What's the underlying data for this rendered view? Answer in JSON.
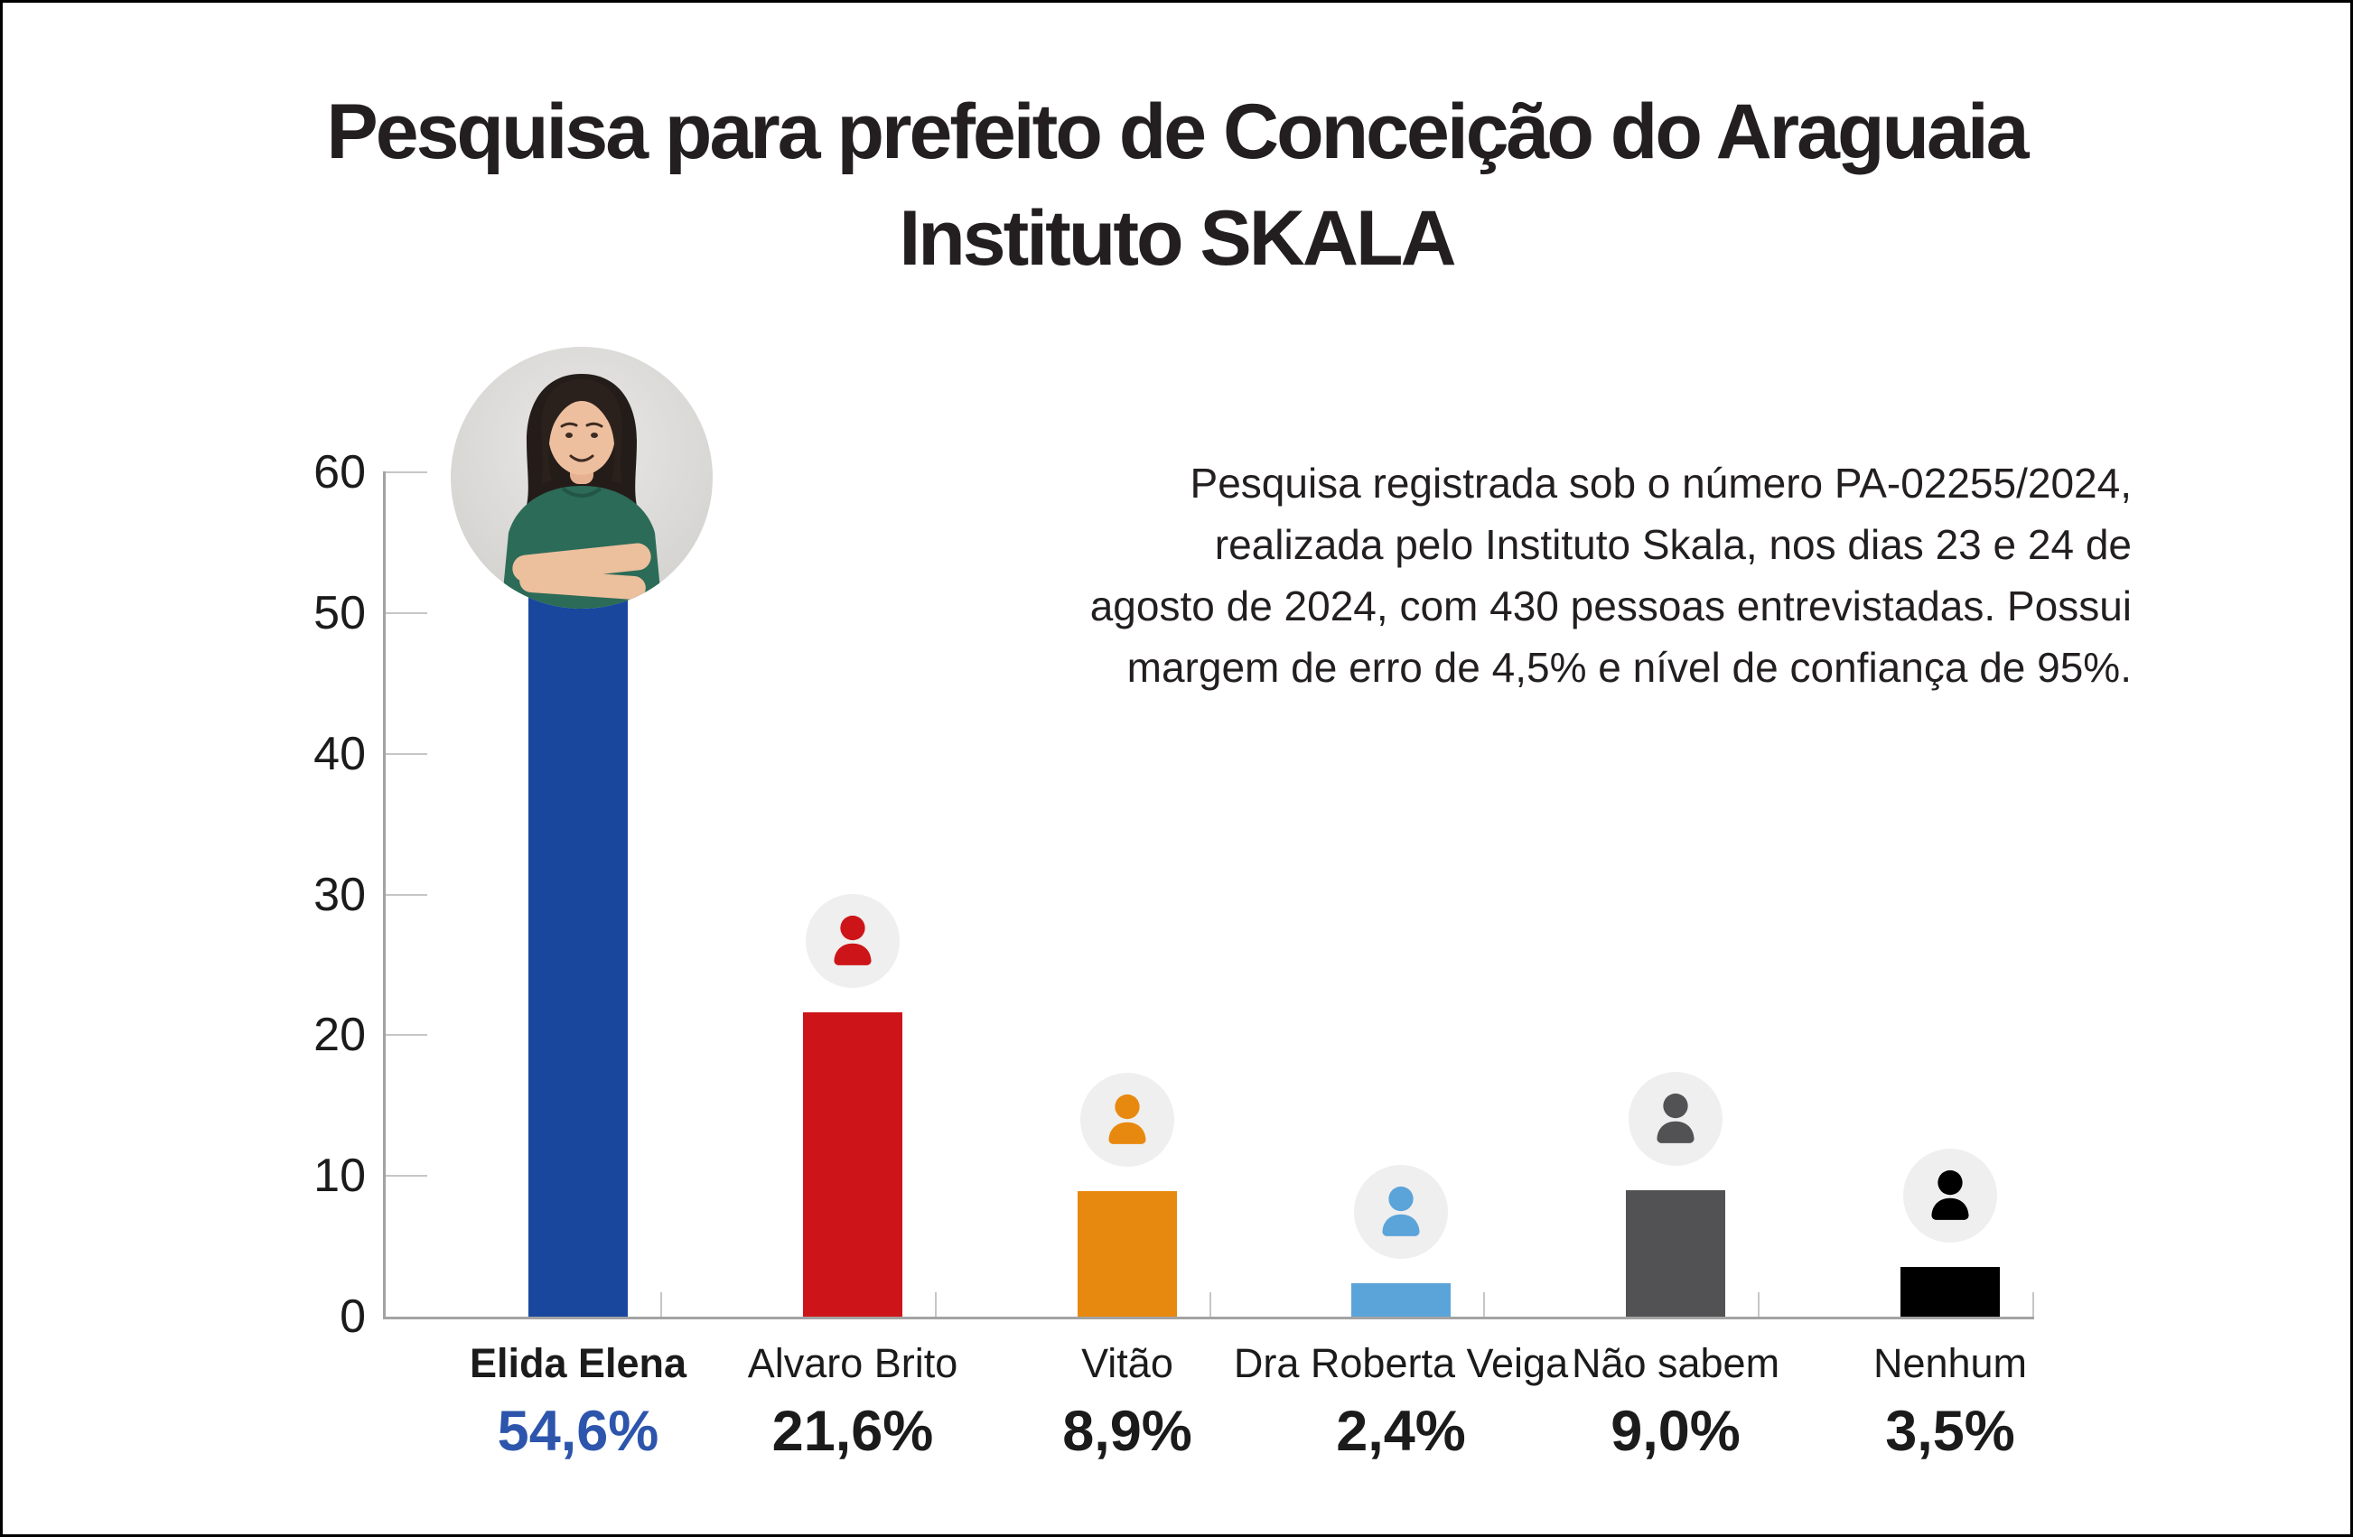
{
  "title": {
    "line1": "Pesquisa para prefeito de Conceição do Araguaia",
    "line2": "Instituto SKALA",
    "color": "#231f20"
  },
  "info": {
    "lines": [
      "Pesquisa registrada sob o número PA-02255/2024,",
      "realizada pelo Instituto Skala, nos dias 23 e 24 de",
      "agosto de 2024, com 430 pessoas entrevistadas. Possui",
      "margem de erro de 4,5% e nível de confiança de 95%."
    ],
    "color": "#231f20"
  },
  "chart_data": {
    "type": "bar",
    "title": "Pesquisa para prefeito de Conceição do Araguaia — Instituto SKALA",
    "categories": [
      "Elida Elena",
      "Alvaro Brito",
      "Vitão",
      "Dra Roberta Veiga",
      "Não sabem",
      "Nenhum"
    ],
    "values": [
      54.6,
      21.6,
      8.9,
      2.4,
      9.0,
      3.5
    ],
    "value_labels": [
      "54,6%",
      "21,6%",
      "8,9%",
      "2,4%",
      "9,0%",
      "3,5%"
    ],
    "bar_colors": [
      "#1a479e",
      "#cd1519",
      "#e8890f",
      "#5ba4d9",
      "#525254",
      "#000000"
    ],
    "icon_types": [
      "photo-woman",
      "person",
      "person",
      "person",
      "person",
      "person"
    ],
    "icon_circle_bg": "#efefef",
    "xlabel": "",
    "ylabel": "",
    "y_ticks": [
      0,
      10,
      20,
      30,
      40,
      50,
      60
    ],
    "ylim": [
      0,
      60
    ],
    "grid": "none",
    "legend": "none",
    "axis_color": "#a3a3a3",
    "tick_color": "#c6c6c6",
    "label_color": "#1b1b1b",
    "highlight": {
      "index": 0,
      "value_color": "#2d55ac",
      "name_bold": true
    }
  }
}
